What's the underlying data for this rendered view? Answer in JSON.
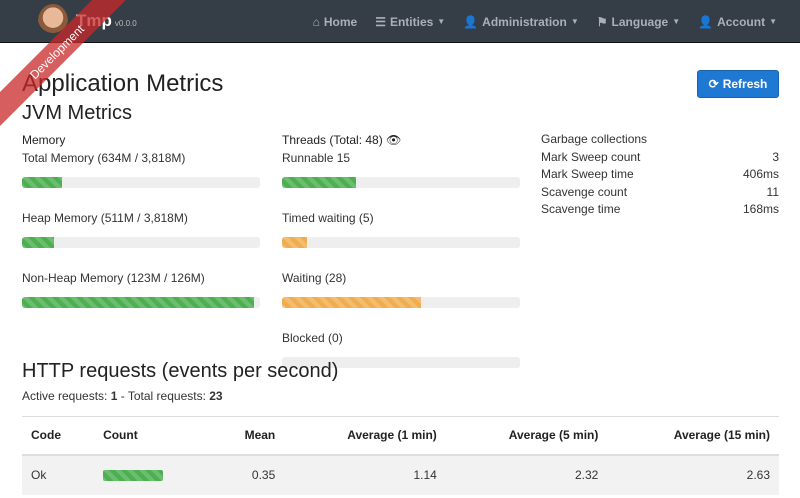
{
  "nav": {
    "brand": "Tmp",
    "version": "v0.0.0",
    "ribbon": "Development",
    "items": [
      {
        "label": "Home",
        "icon": "home-icon",
        "caret": false
      },
      {
        "label": "Entities",
        "icon": "list-icon",
        "caret": true
      },
      {
        "label": "Administration",
        "icon": "user-plus-icon",
        "caret": true
      },
      {
        "label": "Language",
        "icon": "flag-icon",
        "caret": true
      },
      {
        "label": "Account",
        "icon": "user-icon",
        "caret": true
      }
    ]
  },
  "page": {
    "title": "Application Metrics",
    "subtitle": "JVM Metrics",
    "refresh": "Refresh"
  },
  "memory": {
    "title": "Memory",
    "items": [
      {
        "label": "Total Memory (634M / 3,818M)",
        "percent": 16.6
      },
      {
        "label": "Heap Memory (511M / 3,818M)",
        "percent": 13.4
      },
      {
        "label": "Non-Heap Memory (123M / 126M)",
        "percent": 97.6
      }
    ]
  },
  "threads": {
    "title": "Threads",
    "total": "(Total: 48)",
    "items": [
      {
        "label": "Runnable 15",
        "percent": 31.3,
        "status": "success"
      },
      {
        "label": "Timed waiting (5)",
        "percent": 10.4,
        "status": "warning"
      },
      {
        "label": "Waiting (28)",
        "percent": 58.3,
        "status": "warning"
      },
      {
        "label": "Blocked (0)",
        "percent": 0,
        "status": "danger"
      }
    ]
  },
  "gc": {
    "title": "Garbage collections",
    "rows": [
      {
        "label": "Mark Sweep count",
        "value": "3"
      },
      {
        "label": "Mark Sweep time",
        "value": "406ms"
      },
      {
        "label": "Scavenge count",
        "value": "11"
      },
      {
        "label": "Scavenge time",
        "value": "168ms"
      }
    ]
  },
  "http": {
    "title": "HTTP requests (events per second)",
    "active_label": "Active requests:",
    "active": "1",
    "total_label": "- Total requests:",
    "total": "23",
    "columns": [
      "Code",
      "Count",
      "Mean",
      "Average (1 min)",
      "Average (5 min)",
      "Average (15 min)"
    ],
    "rows": [
      {
        "code": "Ok",
        "count_percent": 100,
        "mean": "0.35",
        "avg1": "1.14",
        "avg5": "2.32",
        "avg15": "2.63"
      }
    ]
  },
  "colors": {
    "navbar": "#353d47",
    "primary": "#1f78d1",
    "success": "#4caf50",
    "warning": "#f0ad4e"
  }
}
